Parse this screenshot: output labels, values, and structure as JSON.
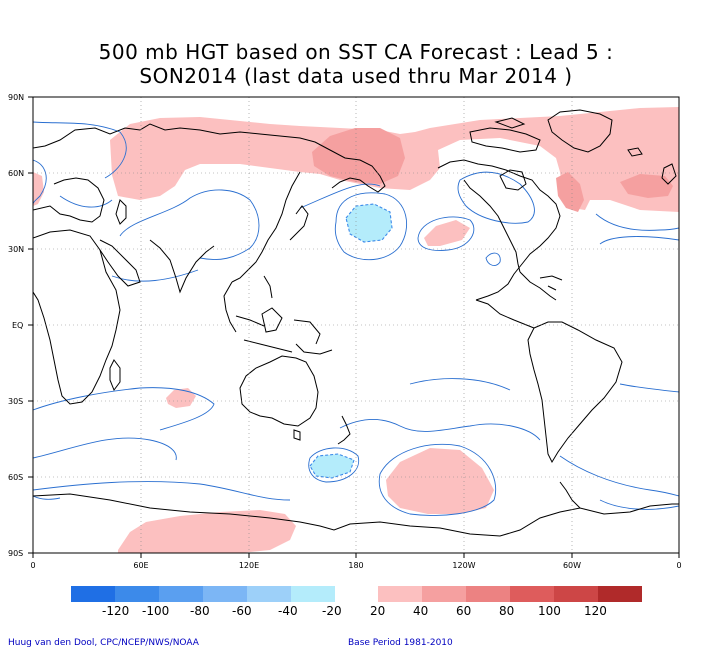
{
  "title_line1": "500 mb HGT based on SST CA Forecast : Lead 5 :",
  "title_line2": "SON2014 (last data used thru Mar 2014 )",
  "lat_labels": [
    "90N",
    "60N",
    "30N",
    "EQ",
    "30S",
    "60S",
    "90S"
  ],
  "lon_labels": [
    "0",
    "60E",
    "120E",
    "180",
    "120W",
    "60W",
    "0"
  ],
  "colorbar": {
    "negative": [
      {
        "color": "#1f6fe5"
      },
      {
        "color": "#3c8aea"
      },
      {
        "color": "#5a9ff0"
      },
      {
        "color": "#7cb6f5"
      },
      {
        "color": "#9dd0f9"
      },
      {
        "color": "#b4ecfb"
      }
    ],
    "negative_labels": [
      "-120",
      "-100",
      "-80",
      "-60",
      "-40",
      "-20"
    ],
    "positive": [
      {
        "color": "#fcc0c0"
      },
      {
        "color": "#f5a0a0"
      },
      {
        "color": "#ec8282"
      },
      {
        "color": "#de5c5c"
      },
      {
        "color": "#cd4646"
      },
      {
        "color": "#b02a2a"
      }
    ],
    "positive_labels": [
      "20",
      "40",
      "60",
      "80",
      "100",
      "120"
    ]
  },
  "credit_left": "Huug van den Dool, CPC/NCEP/NWS/NOAA",
  "credit_right": "Base Period 1981-2010"
}
